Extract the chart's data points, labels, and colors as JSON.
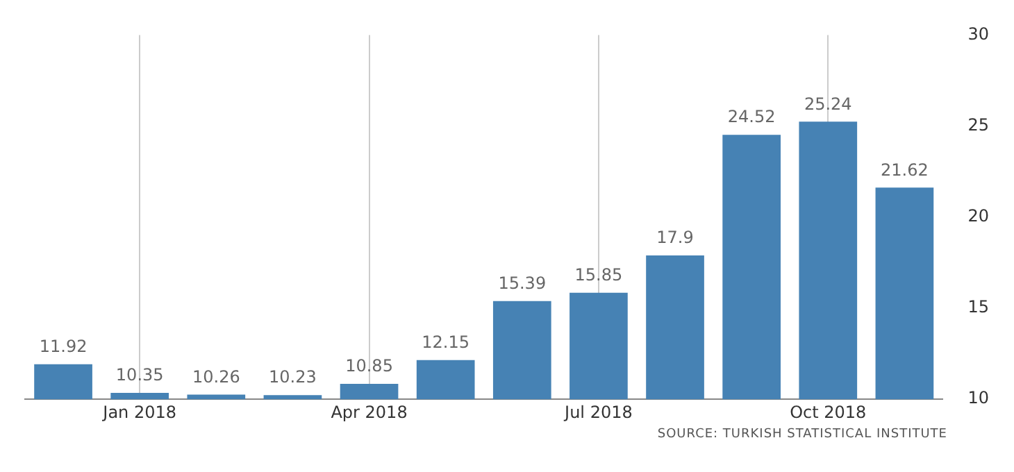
{
  "chart_data": {
    "type": "bar",
    "categories": [
      null,
      "Jan 2018",
      null,
      null,
      "Apr 2018",
      null,
      null,
      "Jul 2018",
      null,
      null,
      "Oct 2018",
      null
    ],
    "values": [
      11.92,
      10.35,
      10.26,
      10.23,
      10.85,
      12.15,
      15.39,
      15.85,
      17.9,
      24.52,
      25.24,
      21.62
    ],
    "color": "#4682b4",
    "ylim": [
      10,
      30
    ],
    "yticks": [
      10,
      15,
      20,
      25,
      30
    ],
    "grid": "x",
    "legend": false,
    "data_labels": true,
    "annotations": [
      "SOURCE: TURKISH STATISTICAL INSTITUTE"
    ]
  }
}
